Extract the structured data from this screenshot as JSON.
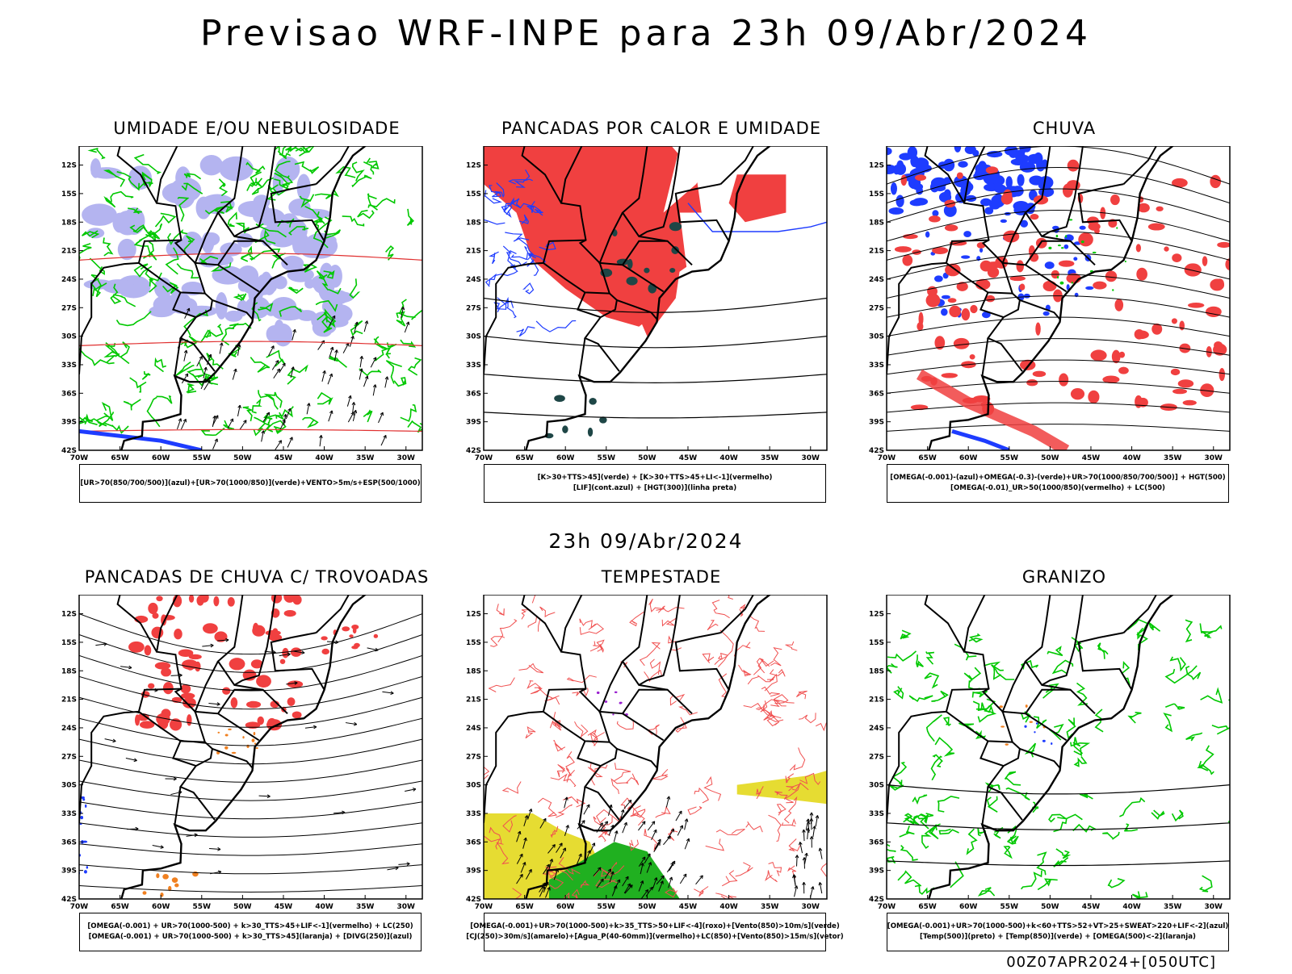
{
  "header": {
    "title": "Previsao WRF-INPE  para 23h 09/Abr/2024",
    "subtitle": "23h 09/Abr/2024",
    "footer": "00Z07APR2024+[050UTC]"
  },
  "axes": {
    "lat_ticks": [
      "12S",
      "15S",
      "18S",
      "21S",
      "24S",
      "27S",
      "30S",
      "33S",
      "36S",
      "39S",
      "42S"
    ],
    "lon_ticks": [
      "70W",
      "65W",
      "60W",
      "55W",
      "50W",
      "45W",
      "40W",
      "35W",
      "30W"
    ]
  },
  "colors": {
    "lilac": "#b4b4f0",
    "green": "#00c800",
    "red": "#f04040",
    "blue": "#1e3cff",
    "yellow": "#e6dc32",
    "teal": "#1e4646",
    "orange": "#f08020",
    "black": "#000000"
  },
  "panels": [
    {
      "id": "umidade",
      "title": "UMIDADE E/OU NEBULOSIDADE",
      "kind": "umidade",
      "caption": [
        "[UR>70(850/700/500)](azul)+[UR>70(1000/850)](verde)+VENTO>5m/s+ESP(500/1000)"
      ]
    },
    {
      "id": "pancadas-calor",
      "title": "PANCADAS POR CALOR E UMIDADE",
      "kind": "calor",
      "caption": [
        "[K>30+TTS>45](verde) + [K>30+TTS>45+LI<-1](vermelho)",
        "[LIF](cont.azul) + [HGT(300)](linha preta)"
      ]
    },
    {
      "id": "chuva",
      "title": "CHUVA",
      "kind": "chuva",
      "caption": [
        "[OMEGA(-0.001)-(azul)+OMEGA(-0.3)-(verde)+UR>70(1000/850/700/500)] + HGT(500)",
        "[OMEGA(-0.01)_UR>50(1000/850)(vermelho) + LC(500)"
      ]
    },
    {
      "id": "trovoadas",
      "title": "PANCADAS DE CHUVA C/ TROVOADAS",
      "kind": "trovoadas",
      "caption": [
        "[OMEGA(-0.001) + UR>70(1000-500) + k>30_TTS>45+LIF<-1](vermelho) + LC(250)",
        "[OMEGA(-0.001) + UR>70(1000-500) + k>30_TTS>45](laranja) + [DIVG(250)](azul)"
      ]
    },
    {
      "id": "tempestade",
      "title": "TEMPESTADE",
      "kind": "tempestade",
      "caption": [
        "[OMEGA(-0.001)+UR>70(1000-500)+k>35_TTS>50+LIF<-4](roxo)+[Vento(850)>10m/s](verde)",
        "[CJ(250)>30m/s](amarelo)+[Agua_P(40-60mm)](vermelho)+LC(850)+[Vento(850)>15m/s](vetor)"
      ]
    },
    {
      "id": "granizo",
      "title": "GRANIZO",
      "kind": "granizo",
      "caption": [
        "[OMEGA(-0.001)+UR>70(1000-500)+k<60+TTS>52+VT>25+SWEAT>220+LIF<-2](azul)",
        "[Temp(500)](preto) + [Temp(850)](verde) + [OMEGA(500)<-2](laranja)"
      ]
    }
  ]
}
